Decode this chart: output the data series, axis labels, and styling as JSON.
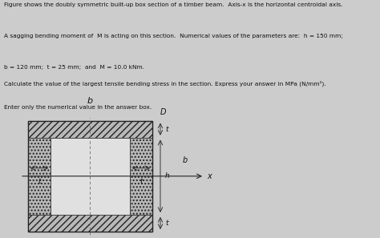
{
  "bg_color": "#cccccc",
  "text_color": "#111111",
  "title_lines": [
    "Figure shows the doubly symmetric built-up box section of a timber beam.  Axis-x is the horizontal centroidal axis.",
    "A sagging bending moment of  M is acting on this section.  Numerical values of the parameters are:  h = 150 mm;",
    "b = 120 mm;  t = 25 mm;  and  M = 10.0 kNm."
  ],
  "question_lines": [
    "Calculate the value of the largest tensile bending stress in the section. Express your answer in MPa (N/mm²).",
    "Enter only the numerical value in the answer box."
  ],
  "bg_color_figure": "#c8c8c8",
  "box_fill": "#b8b8b8",
  "inner_fill": "#e0e0e0",
  "edge_color": "#222222",
  "dashed_color": "#777777",
  "arrow_color": "#333333"
}
